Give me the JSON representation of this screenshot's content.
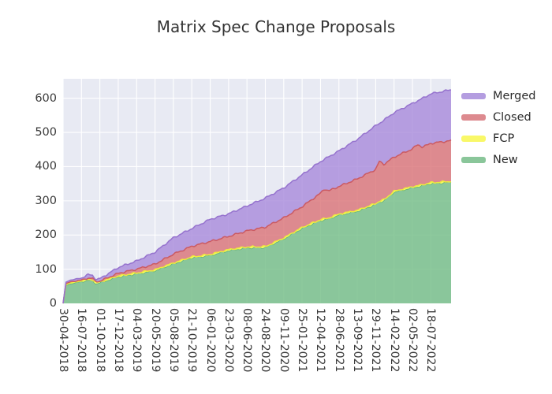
{
  "title": "Matrix Spec Change Proposals",
  "chart_data": {
    "type": "area",
    "stacked": true,
    "title": "Matrix Spec Change Proposals",
    "xlabel": "",
    "ylabel": "",
    "y_ticks": [
      0,
      100,
      200,
      300,
      400,
      500,
      600
    ],
    "ylim": [
      0,
      657
    ],
    "x_unit": "tick index (ticks are 77 days apart)",
    "xlim": [
      0,
      21.1
    ],
    "x_tick_positions": [
      0,
      1,
      2,
      3,
      4,
      5,
      6,
      7,
      8,
      9,
      10,
      11,
      12,
      13,
      14,
      15,
      16,
      17,
      18,
      19,
      20
    ],
    "x_tick_labels": [
      "30-04-2018",
      "16-07-2018",
      "01-10-2018",
      "17-12-2018",
      "04-03-2019",
      "20-05-2019",
      "05-08-2019",
      "21-10-2019",
      "06-01-2020",
      "23-03-2020",
      "08-06-2020",
      "24-08-2020",
      "09-11-2020",
      "25-01-2021",
      "12-04-2021",
      "28-06-2021",
      "13-09-2021",
      "29-11-2021",
      "14-02-2022",
      "02-05-2022",
      "18-07-2022"
    ],
    "x": [
      0,
      0.15,
      0.4,
      1,
      1.35,
      1.6,
      1.8,
      2,
      3,
      4,
      5,
      6,
      7,
      8,
      9,
      10,
      11,
      12,
      13,
      14,
      14.2,
      14.45,
      15,
      16,
      17,
      17.2,
      17.45,
      18,
      19,
      19.3,
      19.55,
      20,
      21.1
    ],
    "series": [
      {
        "name": "New",
        "legend_color": "#8ac69a",
        "fill": "#72bd84",
        "edge": "#5fb377",
        "values": [
          0,
          52,
          57,
          63,
          67,
          66,
          57,
          60,
          77,
          86,
          95,
          115,
          133,
          140,
          154,
          162,
          163,
          188,
          219,
          242,
          244,
          247,
          258,
          269,
          289,
          296,
          300,
          325,
          338,
          341,
          344,
          350,
          354
        ]
      },
      {
        "name": "FCP",
        "legend_color": "#f9f868",
        "fill": "#fdfb45",
        "edge": "#eeea3c",
        "values": [
          0,
          3,
          3,
          3,
          3,
          3,
          3,
          3,
          3,
          3,
          3,
          3,
          3,
          3,
          3,
          3,
          3,
          3,
          3,
          3,
          3,
          3,
          3,
          3,
          3,
          3,
          3,
          3,
          3,
          3,
          3,
          3,
          3
        ]
      },
      {
        "name": "Closed",
        "legend_color": "#dd8a8f",
        "fill": "#da7276",
        "edge": "#cb5a62",
        "values": [
          0,
          3,
          3,
          2,
          4,
          4,
          3,
          2,
          8,
          11,
          17,
          26,
          31,
          38,
          39,
          47,
          57,
          59,
          61,
          77,
          88,
          79,
          81,
          92,
          100,
          116,
          104,
          100,
          111,
          121,
          110,
          115,
          119
        ]
      },
      {
        "name": "Merged",
        "legend_color": "#b49de0",
        "fill": "#a78adb",
        "edge": "#9673ce",
        "values": [
          0,
          4,
          5,
          6,
          10,
          9,
          7,
          7,
          17,
          24,
          35,
          48,
          52,
          65,
          66,
          73,
          85,
          88,
          93,
          93,
          86,
          100,
          104,
          116,
          128,
          112,
          129,
          130,
          133,
          128,
          143,
          145,
          149
        ]
      }
    ],
    "legend_order": [
      "Merged",
      "Closed",
      "FCP",
      "New"
    ],
    "legend_position": "upper right, outside plot area",
    "grid": true,
    "plot_bg": "#e8eaf3",
    "grid_color": "#ffffff",
    "text_color": "#3a3a3a",
    "fill_opacity": 0.8
  }
}
